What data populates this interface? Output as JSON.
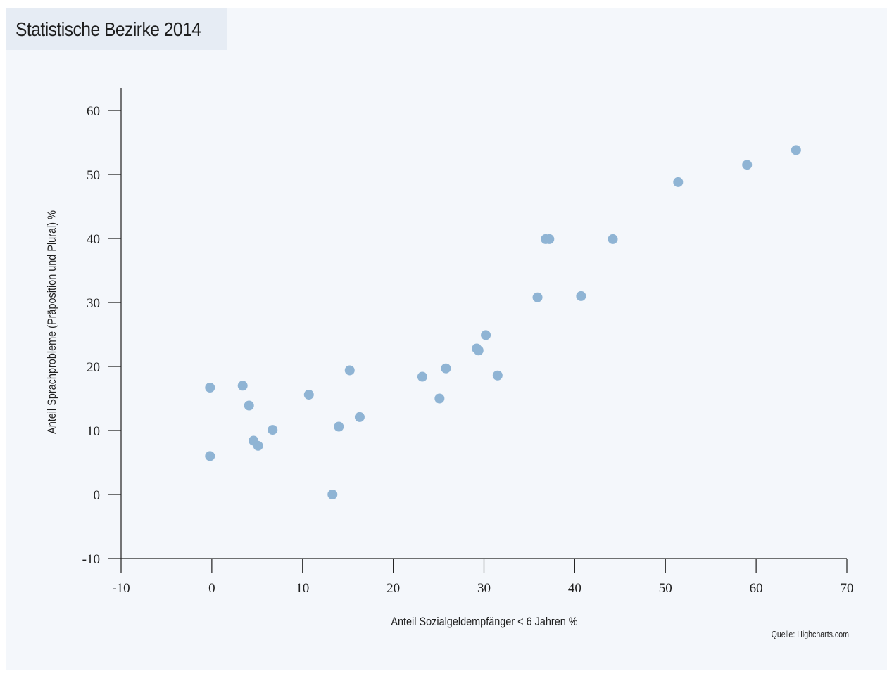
{
  "header": {
    "title": "Statistische Bezirke 2014"
  },
  "chart_data": {
    "type": "scatter",
    "title": "Statistische Bezirke 2014",
    "xlabel": "Anteil Sozialgeldempfänger < 6 Jahren %",
    "ylabel": "Anteil Sprachprobleme (Präposition und Plural) %",
    "xlim": [
      -10,
      70
    ],
    "ylim": [
      -10,
      60
    ],
    "x_ticks": [
      -10,
      0,
      10,
      20,
      30,
      40,
      50,
      60,
      70
    ],
    "y_ticks": [
      -10,
      0,
      10,
      20,
      30,
      40,
      50,
      60
    ],
    "grid": false,
    "legend": "none",
    "credit": "Quelle: Highcharts.com",
    "marker_color": "#8fb4d4",
    "series": [
      {
        "points": [
          {
            "x": -0.2,
            "y": 16.7
          },
          {
            "x": -0.2,
            "y": 6.0
          },
          {
            "x": 3.4,
            "y": 17.0
          },
          {
            "x": 4.1,
            "y": 13.9
          },
          {
            "x": 4.6,
            "y": 8.4
          },
          {
            "x": 5.1,
            "y": 7.6
          },
          {
            "x": 6.7,
            "y": 10.1
          },
          {
            "x": 10.7,
            "y": 15.6
          },
          {
            "x": 13.3,
            "y": 0.0
          },
          {
            "x": 14.0,
            "y": 10.6
          },
          {
            "x": 15.2,
            "y": 19.4
          },
          {
            "x": 16.3,
            "y": 12.1
          },
          {
            "x": 23.2,
            "y": 18.4
          },
          {
            "x": 25.1,
            "y": 15.0
          },
          {
            "x": 25.8,
            "y": 19.7
          },
          {
            "x": 29.2,
            "y": 22.8
          },
          {
            "x": 29.4,
            "y": 22.5
          },
          {
            "x": 30.2,
            "y": 24.9
          },
          {
            "x": 31.5,
            "y": 18.6
          },
          {
            "x": 35.9,
            "y": 30.8
          },
          {
            "x": 36.8,
            "y": 39.9
          },
          {
            "x": 37.2,
            "y": 39.9
          },
          {
            "x": 40.7,
            "y": 31.0
          },
          {
            "x": 44.2,
            "y": 39.9
          },
          {
            "x": 51.4,
            "y": 48.8
          },
          {
            "x": 59.0,
            "y": 51.5
          },
          {
            "x": 64.4,
            "y": 53.8
          }
        ]
      }
    ]
  }
}
